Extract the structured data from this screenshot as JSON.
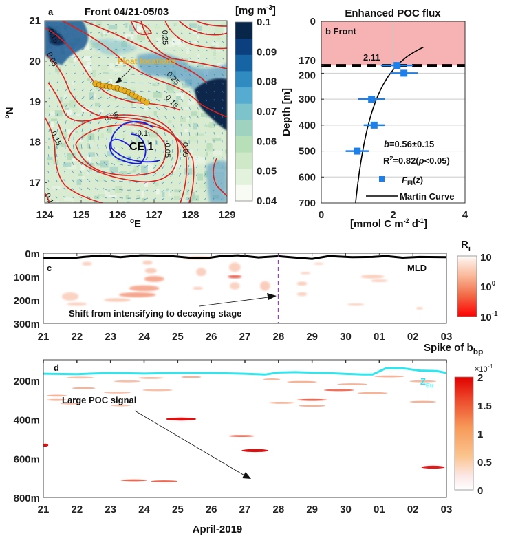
{
  "chart_data": [
    {
      "panel": "a",
      "type": "heatmap",
      "title": "Front 04/21-05/03",
      "panel_label": "a",
      "xlabel": "oE",
      "ylabel": "oN",
      "xlim": [
        124,
        129
      ],
      "ylim": [
        16.5,
        21
      ],
      "xticks": [
        "124",
        "125",
        "126",
        "127",
        "128",
        "129"
      ],
      "yticks": [
        "17",
        "18",
        "19",
        "20",
        "21"
      ],
      "colorbar": {
        "title": "[mg m-3]",
        "ticks": [
          "0.04",
          "0.05",
          "0.06",
          "0.07",
          "0.08",
          "0.09",
          "0.1"
        ],
        "range": [
          0.04,
          0.1
        ],
        "colors": [
          "#f7fbf4",
          "#e3f2dc",
          "#cfe9c8",
          "#b7dfb8",
          "#9fd3c0",
          "#7cc3cc",
          "#55abd0",
          "#2f8bc0",
          "#1764a5",
          "#0c3f7e",
          "#08264a"
        ]
      },
      "contour_labels_positive": [
        "0.25",
        "0.25",
        "0.15",
        "0.15",
        "0.15",
        "0.05",
        "0.05",
        "0.05",
        "0.15",
        "0.15"
      ],
      "contour_labels_negative": [
        "-0.1",
        "-0.05",
        "-0.05"
      ],
      "annotations": [
        "Float locations",
        "CE 1"
      ],
      "float_track": {
        "lon": [
          125.4,
          125.5,
          125.6,
          125.7,
          125.8,
          125.9,
          126.0,
          126.1,
          126.2,
          126.3,
          126.4,
          126.5,
          126.6,
          126.7,
          126.8
        ],
        "lat": [
          19.45,
          19.42,
          19.4,
          19.38,
          19.37,
          19.35,
          19.33,
          19.3,
          19.27,
          19.23,
          19.18,
          19.13,
          19.08,
          19.03,
          18.98
        ]
      },
      "colors": {
        "positive_contour": "#e0201b",
        "negative_contour": "#1a1adc",
        "float_marker": "#e8b020",
        "float_label": "#e8b020"
      }
    },
    {
      "panel": "b",
      "type": "scatter",
      "title": "Enhanced POC flux",
      "panel_label": "b  Front",
      "xlabel": "[mmol C m-2 d-1]",
      "ylabel": "Depth [m]",
      "xlim": [
        0,
        4
      ],
      "ylim": [
        0,
        700
      ],
      "xticks": [
        "0",
        "2",
        "4"
      ],
      "yticks": [
        "0",
        "170",
        "200",
        "300",
        "400",
        "500",
        "600",
        "700"
      ],
      "shaded_region": {
        "from_depth": 0,
        "to_depth": 170,
        "color": "#f7b3b3"
      },
      "dashed_line_depth": 170,
      "dashed_line_label": "2.11",
      "points": [
        {
          "depth": 170,
          "flux": 2.11,
          "err": 0.45
        },
        {
          "depth": 200,
          "flux": 2.3,
          "err": 0.38
        },
        {
          "depth": 300,
          "flux": 1.4,
          "err": 0.37
        },
        {
          "depth": 400,
          "flux": 1.47,
          "err": 0.29
        },
        {
          "depth": 500,
          "flux": 1.0,
          "err": 0.32
        }
      ],
      "martin_curve": {
        "f0": 2.11,
        "z0": 170,
        "b": 0.56,
        "depth_range": [
          100,
          700
        ]
      },
      "stats": {
        "b": "b=0.56±0.15",
        "r2": "R2=0.82(p<0.05)"
      },
      "legend": [
        {
          "label": "F_FI(z)",
          "marker": "square",
          "color": "#1f7fe8"
        },
        {
          "label": "Martin Curve",
          "marker": "line",
          "color": "#000000"
        }
      ],
      "legend_position": "bottom-right"
    },
    {
      "panel": "c",
      "type": "heatmap",
      "panel_label": "c",
      "xlim_days": [
        21,
        33
      ],
      "xticks": [
        "21",
        "22",
        "23",
        "24",
        "25",
        "26",
        "27",
        "28",
        "29",
        "30",
        "01",
        "02",
        "03"
      ],
      "ylim": [
        0,
        300
      ],
      "yticks": [
        "0m",
        "100m",
        "200m",
        "300m"
      ],
      "colorbar": {
        "title": "Ri",
        "ticks": [
          "10",
          "10^0",
          "10^-1"
        ],
        "scale": "log",
        "range": [
          0.1,
          10
        ]
      },
      "mld_label": "MLD",
      "mld": {
        "day": [
          21,
          21.8,
          22.2,
          22.7,
          23.3,
          23.9,
          24.7,
          25.4,
          25.8,
          26.3,
          26.8,
          27.4,
          28.0,
          28.6,
          29.0,
          29.5,
          30.2,
          30.8,
          31.2,
          31.7,
          32.2,
          33.0
        ],
        "depth": [
          20,
          22,
          16,
          10,
          17,
          9,
          11,
          20,
          22,
          12,
          9,
          18,
          13,
          20,
          24,
          12,
          17,
          16,
          12,
          19,
          16,
          17
        ]
      },
      "stage_shift_day": 28,
      "annotation": "Shift from intensifying to decaying stage",
      "patches": [
        {
          "day": 24.1,
          "depth": 40,
          "w": 0.3,
          "h": 12,
          "v": 0.4
        },
        {
          "day": 24.2,
          "depth": 75,
          "w": 0.35,
          "h": 18,
          "v": 0.5
        },
        {
          "day": 24.3,
          "depth": 110,
          "w": 0.6,
          "h": 20,
          "v": 0.6
        },
        {
          "day": 24.0,
          "depth": 150,
          "w": 0.9,
          "h": 20,
          "v": 0.6
        },
        {
          "day": 23.8,
          "depth": 178,
          "w": 1.1,
          "h": 15,
          "v": 0.7
        },
        {
          "day": 23.2,
          "depth": 200,
          "w": 0.8,
          "h": 10,
          "v": 0.5
        },
        {
          "day": 21.8,
          "depth": 185,
          "w": 0.5,
          "h": 30,
          "v": 0.35
        },
        {
          "day": 22.0,
          "depth": 218,
          "w": 0.6,
          "h": 10,
          "v": 0.3
        },
        {
          "day": 22.3,
          "depth": 45,
          "w": 0.3,
          "h": 10,
          "v": 0.4
        },
        {
          "day": 25.6,
          "depth": 20,
          "w": 0.9,
          "h": 8,
          "v": 0.55
        },
        {
          "day": 25.7,
          "depth": 80,
          "w": 0.3,
          "h": 30,
          "v": 0.4
        },
        {
          "day": 25.6,
          "depth": 150,
          "w": 0.3,
          "h": 8,
          "v": 0.4
        },
        {
          "day": 26.7,
          "depth": 60,
          "w": 0.35,
          "h": 35,
          "v": 0.4
        },
        {
          "day": 26.7,
          "depth": 100,
          "w": 0.4,
          "h": 8,
          "v": 0.9
        },
        {
          "day": 26.7,
          "depth": 140,
          "w": 0.3,
          "h": 25,
          "v": 0.35
        },
        {
          "day": 27.6,
          "depth": 140,
          "w": 0.3,
          "h": 35,
          "v": 0.5
        },
        {
          "day": 28.7,
          "depth": 130,
          "w": 0.3,
          "h": 12,
          "v": 0.45
        },
        {
          "day": 28.7,
          "depth": 175,
          "w": 0.3,
          "h": 10,
          "v": 0.45
        },
        {
          "day": 28.8,
          "depth": 85,
          "w": 0.3,
          "h": 5,
          "v": 0.3
        },
        {
          "day": 30.8,
          "depth": 100,
          "w": 0.7,
          "h": 10,
          "v": 0.5
        },
        {
          "day": 31.0,
          "depth": 118,
          "w": 0.5,
          "h": 6,
          "v": 0.45
        },
        {
          "day": 30.3,
          "depth": 220,
          "w": 0.5,
          "h": 4,
          "v": 0.5
        },
        {
          "day": 32.2,
          "depth": 235,
          "w": 0.2,
          "h": 5,
          "v": 0.45
        },
        {
          "day": 29.2,
          "depth": 45,
          "w": 0.3,
          "h": 4,
          "v": 0.3
        }
      ]
    },
    {
      "panel": "d",
      "type": "heatmap",
      "panel_label": "d",
      "xlim_days": [
        21,
        33
      ],
      "xticks": [
        "21",
        "22",
        "23",
        "24",
        "25",
        "26",
        "27",
        "28",
        "29",
        "30",
        "01",
        "02",
        "03"
      ],
      "xlabel": "April-2019",
      "ylim": [
        95,
        800
      ],
      "yticks": [
        "200m",
        "400m",
        "600m",
        "800m"
      ],
      "colorbar": {
        "title": "Spike of bbp",
        "multiplier": "×10-4",
        "ticks": [
          "0",
          "0.5",
          "1",
          "1.5",
          "2"
        ],
        "range": [
          0,
          2
        ]
      },
      "zeu_label": "ZEu",
      "zeu": {
        "day": [
          21,
          22,
          23,
          24,
          25,
          26,
          27,
          27.6,
          28,
          28.5,
          29.5,
          30.5,
          30.8,
          31.2,
          31.7,
          32.2,
          32.7,
          33.0
        ],
        "depth": [
          166,
          168,
          162,
          165,
          162,
          162,
          166,
          170,
          160,
          158,
          163,
          170,
          170,
          138,
          138,
          150,
          152,
          162
        ]
      },
      "annotation": "Large POC signal",
      "spikes": [
        {
          "day": 25.1,
          "depth": 398,
          "w": 0.9,
          "v": 2.0
        },
        {
          "day": 27.3,
          "depth": 560,
          "w": 0.8,
          "v": 2.0
        },
        {
          "day": 21.05,
          "depth": 532,
          "w": 0.2,
          "v": 2.0
        },
        {
          "day": 26.9,
          "depth": 485,
          "w": 0.8,
          "v": 1.2
        },
        {
          "day": 23.7,
          "depth": 712,
          "w": 0.8,
          "v": 1.5
        },
        {
          "day": 24.6,
          "depth": 717,
          "w": 0.8,
          "v": 1.5
        },
        {
          "day": 32.6,
          "depth": 645,
          "w": 0.7,
          "v": 1.8
        },
        {
          "day": 22.2,
          "depth": 240,
          "w": 0.7,
          "v": 1.0
        },
        {
          "day": 21.4,
          "depth": 278,
          "w": 0.6,
          "v": 1.0
        },
        {
          "day": 21.4,
          "depth": 300,
          "w": 0.6,
          "v": 0.8
        },
        {
          "day": 21.8,
          "depth": 318,
          "w": 0.6,
          "v": 0.6
        },
        {
          "day": 23.2,
          "depth": 262,
          "w": 0.8,
          "v": 0.6
        },
        {
          "day": 24.4,
          "depth": 250,
          "w": 0.9,
          "v": 0.6
        },
        {
          "day": 25.4,
          "depth": 183,
          "w": 0.6,
          "v": 1.0
        },
        {
          "day": 24.2,
          "depth": 188,
          "w": 0.8,
          "v": 0.7
        },
        {
          "day": 23.5,
          "depth": 205,
          "w": 0.8,
          "v": 0.6
        },
        {
          "day": 22.1,
          "depth": 186,
          "w": 0.8,
          "v": 0.5
        },
        {
          "day": 23.3,
          "depth": 328,
          "w": 0.6,
          "v": 0.5
        },
        {
          "day": 28.7,
          "depth": 208,
          "w": 0.9,
          "v": 1.0
        },
        {
          "day": 29.8,
          "depth": 250,
          "w": 0.9,
          "v": 1.3
        },
        {
          "day": 29.0,
          "depth": 300,
          "w": 0.9,
          "v": 1.5
        },
        {
          "day": 29.0,
          "depth": 330,
          "w": 0.8,
          "v": 1.0
        },
        {
          "day": 28.1,
          "depth": 315,
          "w": 0.8,
          "v": 1.0
        },
        {
          "day": 27.8,
          "depth": 195,
          "w": 0.5,
          "v": 0.8
        },
        {
          "day": 30.2,
          "depth": 220,
          "w": 0.9,
          "v": 1.0
        },
        {
          "day": 30.8,
          "depth": 265,
          "w": 0.9,
          "v": 1.0
        },
        {
          "day": 31.3,
          "depth": 180,
          "w": 0.9,
          "v": 1.0
        },
        {
          "day": 32.3,
          "depth": 205,
          "w": 0.8,
          "v": 0.8
        },
        {
          "day": 32.3,
          "depth": 310,
          "w": 0.8,
          "v": 1.0
        }
      ]
    }
  ]
}
